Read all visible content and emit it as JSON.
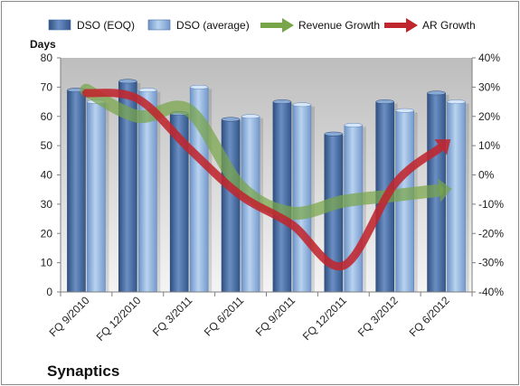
{
  "chart_data": {
    "type": "bar",
    "title": "Synaptics",
    "ylabel": "Days",
    "categories": [
      "FQ 9/2010",
      "FQ 12/2010",
      "FQ 3/2011",
      "FQ 6/2011",
      "FQ 9/2011",
      "FQ 12/2011",
      "FQ 3/2012",
      "FQ 6/2012"
    ],
    "ylim": [
      0,
      80
    ],
    "y2lim": [
      -40,
      40
    ],
    "yticks": [
      "0",
      "10",
      "20",
      "30",
      "40",
      "50",
      "60",
      "70",
      "80"
    ],
    "y2ticks": [
      "-40%",
      "-30%",
      "-20%",
      "-10%",
      "0%",
      "10%",
      "20%",
      "30%",
      "40%"
    ],
    "legend_position": "top",
    "grid": false,
    "series": [
      {
        "name": "DSO (EOQ)",
        "type": "bar",
        "color": "#4a6fa5",
        "values": [
          69,
          72,
          61,
          59,
          65,
          54,
          65,
          68
        ]
      },
      {
        "name": "DSO (average)",
        "type": "bar",
        "color": "#8db2dd",
        "values": [
          65,
          69,
          70,
          60,
          64,
          57,
          62,
          65
        ]
      },
      {
        "name": "Revenue Growth",
        "type": "arrow-line",
        "axis": "secondary",
        "color": "#79a54a",
        "values": [
          29,
          20,
          22,
          -4,
          -13,
          -9,
          -7,
          -5
        ]
      },
      {
        "name": "AR Growth",
        "type": "arrow-line",
        "axis": "secondary",
        "color": "#c0262d",
        "values": [
          28,
          26,
          9,
          -7,
          -17,
          -31,
          -3,
          11
        ]
      }
    ]
  }
}
